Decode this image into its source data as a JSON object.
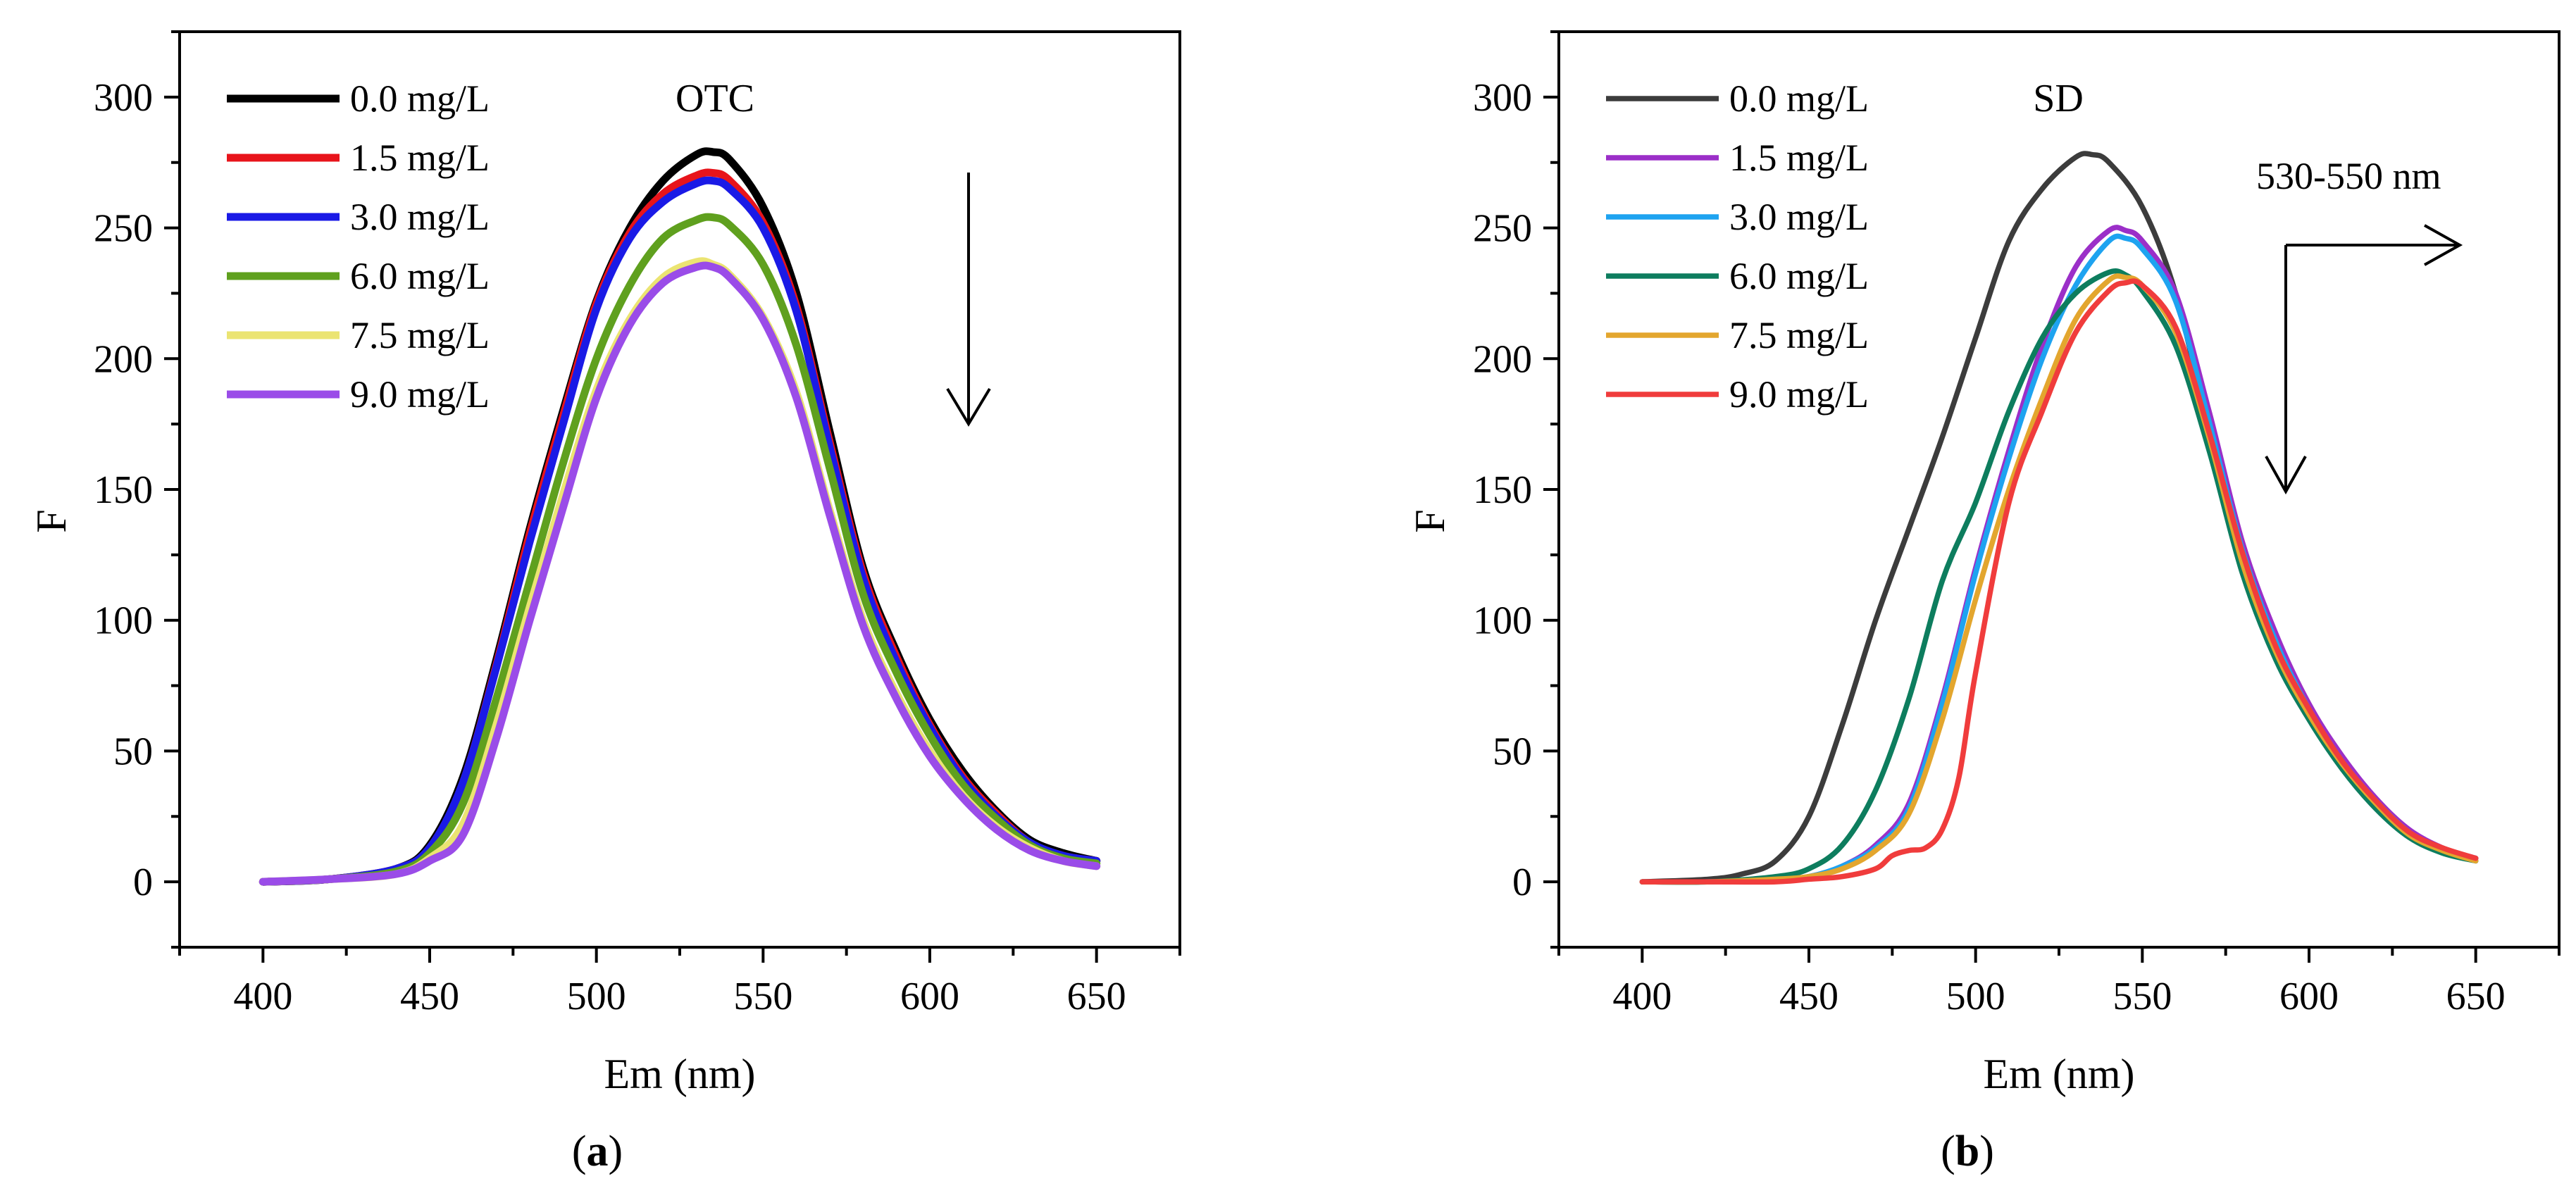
{
  "panels": [
    {
      "panel_letter": "a",
      "annotation_text": "",
      "chart_data": {
        "type": "line",
        "title": "OTC",
        "xlabel": "Em (nm)",
        "ylabel": "F",
        "xlim": [
          375,
          675
        ],
        "ylim": [
          -25,
          325
        ],
        "xticks": [
          400,
          450,
          500,
          550,
          600,
          650
        ],
        "yticks": [
          0,
          50,
          100,
          150,
          200,
          250,
          300
        ],
        "grid": false,
        "legend_position": "top-left",
        "arrow_direction": "down",
        "series": [
          {
            "name": "0.0 mg/L",
            "color": "#000000",
            "x": [
              400,
              420,
              440,
              450,
              460,
              470,
              480,
              490,
              500,
              510,
              520,
              530,
              535,
              540,
              550,
              560,
              570,
              580,
              590,
              600,
              610,
              620,
              630,
              640,
              650
            ],
            "y": [
              0,
              1,
              5,
              14,
              40,
              85,
              135,
              180,
              222,
              250,
              268,
              278,
              279,
              276,
              258,
              225,
              172,
              120,
              88,
              62,
              42,
              27,
              16,
              11,
              8
            ]
          },
          {
            "name": "1.5 mg/L",
            "color": "#e8141b",
            "x": [
              400,
              420,
              440,
              450,
              460,
              470,
              480,
              490,
              500,
              510,
              520,
              530,
              535,
              540,
              550,
              560,
              570,
              580,
              590,
              600,
              610,
              620,
              630,
              640,
              650
            ],
            "y": [
              0,
              1,
              5,
              13,
              38,
              83,
              133,
              178,
              221,
              248,
              263,
              270,
              271,
              268,
              252,
              220,
              168,
              118,
              86,
              60,
              40,
              26,
              15,
              10,
              8
            ]
          },
          {
            "name": "3.0 mg/L",
            "color": "#1a1ae6",
            "x": [
              400,
              420,
              440,
              450,
              460,
              470,
              480,
              490,
              500,
              510,
              520,
              530,
              535,
              540,
              550,
              560,
              570,
              580,
              590,
              600,
              610,
              620,
              630,
              640,
              650
            ],
            "y": [
              0,
              1,
              5,
              13,
              38,
              82,
              130,
              175,
              219,
              246,
              260,
              267,
              268,
              265,
              250,
              218,
              166,
              116,
              84,
              59,
              39,
              25,
              15,
              10,
              8
            ]
          },
          {
            "name": "6.0 mg/L",
            "color": "#5fa01e",
            "x": [
              400,
              420,
              440,
              450,
              460,
              470,
              480,
              490,
              500,
              510,
              520,
              530,
              535,
              540,
              550,
              560,
              570,
              580,
              590,
              600,
              610,
              620,
              630,
              640,
              650
            ],
            "y": [
              0,
              1,
              4,
              11,
              30,
              70,
              115,
              160,
              200,
              228,
              246,
              253,
              254,
              251,
              236,
              205,
              158,
              110,
              80,
              56,
              37,
              24,
              14,
              9,
              7
            ]
          },
          {
            "name": "7.5 mg/L",
            "color": "#ebe472",
            "x": [
              400,
              420,
              440,
              450,
              460,
              470,
              480,
              490,
              500,
              510,
              520,
              530,
              535,
              540,
              550,
              560,
              570,
              580,
              590,
              600,
              610,
              620,
              630,
              640,
              650
            ],
            "y": [
              0,
              1,
              3,
              9,
              22,
              60,
              105,
              148,
              188,
              215,
              231,
              237,
              236,
              232,
              216,
              187,
              142,
              100,
              72,
              50,
              33,
              21,
              13,
              8,
              6
            ]
          },
          {
            "name": "9.0 mg/L",
            "color": "#9a4ce8",
            "x": [
              400,
              420,
              440,
              450,
              460,
              470,
              480,
              490,
              500,
              510,
              520,
              530,
              535,
              540,
              550,
              560,
              570,
              580,
              590,
              600,
              610,
              620,
              630,
              640,
              650
            ],
            "y": [
              0,
              1,
              3,
              8,
              18,
              55,
              100,
              143,
              185,
              213,
              229,
              235,
              235,
              231,
              215,
              185,
              140,
              98,
              70,
              48,
              32,
              20,
              12,
              8,
              6
            ]
          }
        ]
      }
    },
    {
      "panel_letter": "b",
      "annotation_text": "530-550 nm",
      "chart_data": {
        "type": "line",
        "title": "SD",
        "xlabel": "Em (nm)",
        "ylabel": "F",
        "xlim": [
          375,
          675
        ],
        "ylim": [
          -25,
          325
        ],
        "xticks": [
          400,
          450,
          500,
          550,
          600,
          650
        ],
        "yticks": [
          0,
          50,
          100,
          150,
          200,
          250,
          300
        ],
        "grid": false,
        "legend_position": "top-left",
        "arrow_direction": "down-right",
        "series": [
          {
            "name": "0.0 mg/L",
            "color": "#3c3c3c",
            "x": [
              400,
              420,
              430,
              440,
              450,
              460,
              470,
              480,
              490,
              500,
              510,
              520,
              530,
              535,
              540,
              550,
              560,
              570,
              580,
              590,
              600,
              610,
              620,
              630,
              640,
              650
            ],
            "y": [
              0,
              1,
              3,
              8,
              25,
              60,
              100,
              135,
              170,
              208,
              245,
              265,
              277,
              278,
              275,
              258,
              225,
              172,
              122,
              88,
              64,
              44,
              29,
              18,
              12,
              9
            ]
          },
          {
            "name": "1.5 mg/L",
            "color": "#9b2fc8",
            "x": [
              400,
              420,
              440,
              450,
              460,
              470,
              480,
              490,
              500,
              510,
              520,
              530,
              540,
              545,
              550,
              560,
              570,
              580,
              590,
              600,
              610,
              620,
              630,
              640,
              650
            ],
            "y": [
              0,
              0,
              1,
              2,
              6,
              14,
              30,
              70,
              120,
              165,
              205,
              235,
              249,
              249,
              245,
              225,
              180,
              130,
              95,
              68,
              48,
              32,
              20,
              13,
              9
            ]
          },
          {
            "name": "3.0 mg/L",
            "color": "#1ea3f0",
            "x": [
              400,
              420,
              440,
              450,
              460,
              470,
              480,
              490,
              500,
              510,
              520,
              530,
              540,
              545,
              550,
              560,
              570,
              580,
              590,
              600,
              610,
              620,
              630,
              640,
              650
            ],
            "y": [
              0,
              0,
              1,
              2,
              6,
              13,
              28,
              68,
              118,
              162,
              200,
              228,
              245,
              246,
              242,
              222,
              176,
              127,
              92,
              66,
              46,
              31,
              19,
              12,
              8
            ]
          },
          {
            "name": "6.0 mg/L",
            "color": "#0d7d5e",
            "x": [
              400,
              420,
              440,
              450,
              460,
              470,
              480,
              490,
              500,
              510,
              520,
              530,
              540,
              545,
              550,
              560,
              570,
              580,
              590,
              600,
              610,
              620,
              630,
              640,
              650
            ],
            "y": [
              0,
              0,
              2,
              5,
              14,
              35,
              70,
              115,
              145,
              180,
              208,
              225,
              233,
              232,
              226,
              205,
              165,
              118,
              85,
              62,
              43,
              28,
              17,
              11,
              8
            ]
          },
          {
            "name": "7.5 mg/L",
            "color": "#e3a62e",
            "x": [
              400,
              420,
              440,
              450,
              460,
              470,
              480,
              490,
              500,
              510,
              520,
              530,
              540,
              545,
              550,
              560,
              570,
              580,
              590,
              600,
              610,
              620,
              630,
              640,
              650
            ],
            "y": [
              0,
              0,
              1,
              2,
              5,
              12,
              26,
              62,
              108,
              150,
              185,
              215,
              230,
              231,
              228,
              210,
              170,
              122,
              88,
              64,
              45,
              30,
              18,
              12,
              8
            ]
          },
          {
            "name": "9.0 mg/L",
            "color": "#f03c3c",
            "x": [
              400,
              420,
              440,
              450,
              460,
              470,
              475,
              480,
              485,
              490,
              495,
              500,
              510,
              520,
              530,
              540,
              545,
              550,
              560,
              570,
              580,
              590,
              600,
              610,
              620,
              630,
              640,
              650
            ],
            "y": [
              0,
              0,
              0,
              1,
              2,
              5,
              10,
              12,
              13,
              20,
              40,
              80,
              145,
              180,
              210,
              226,
              229,
              228,
              212,
              172,
              126,
              90,
              66,
              46,
              31,
              19,
              13,
              9
            ]
          }
        ]
      }
    }
  ]
}
